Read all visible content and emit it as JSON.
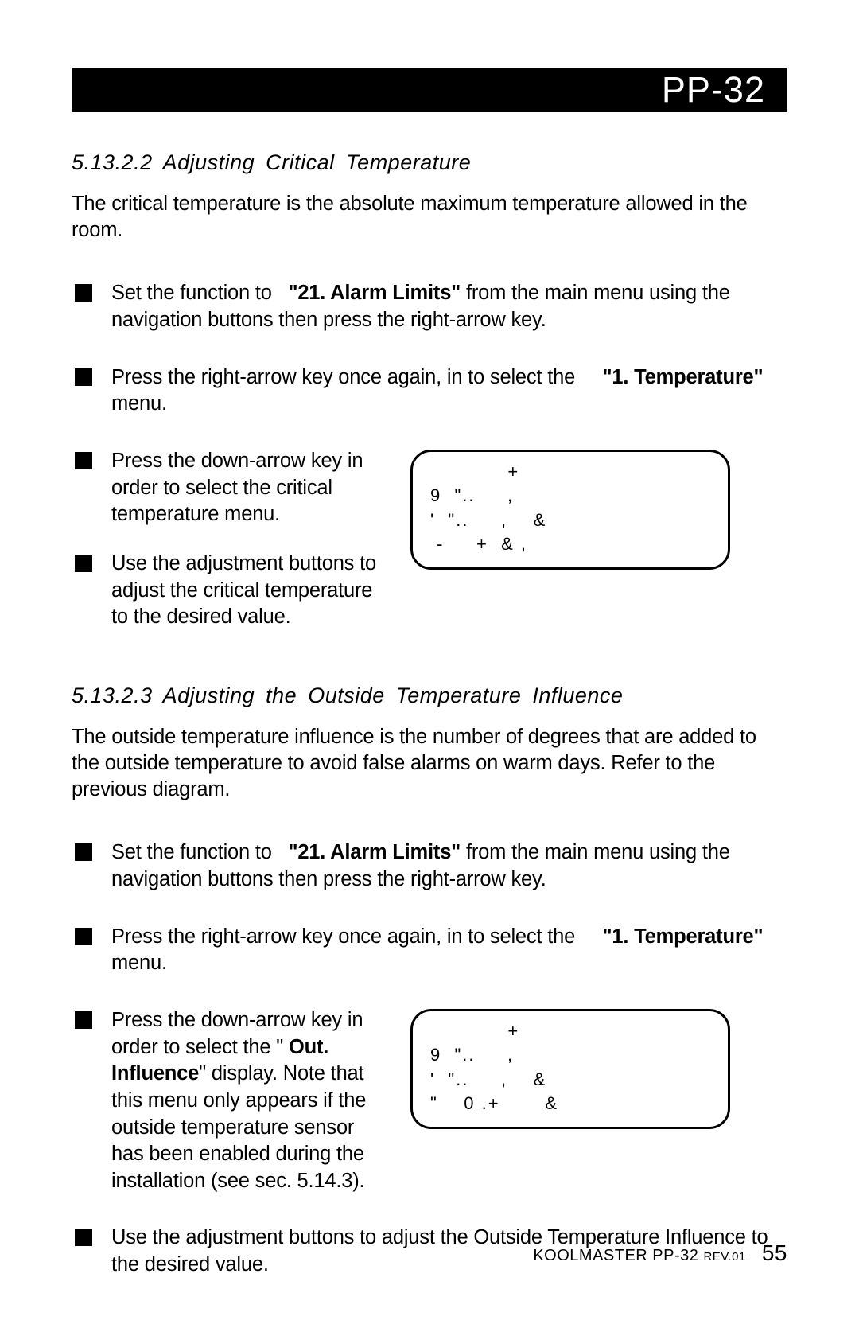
{
  "header": {
    "model": "PP-32"
  },
  "sec1": {
    "heading": "5.13.2.2  Adjusting  Critical  Temperature",
    "intro": "The critical temperature is the absolute maximum temperature allowed in the room.",
    "b1_pre": "Set the function to ",
    "b1_bold": "\"21. Alarm Limits\"",
    "b1_post": " from the  main menu using the navigation buttons then press the right-arrow key.",
    "b2_pre": "Press the right-arrow key once again, in to select the ",
    "b2_bold": "\"1. Tempera­ture\"",
    "b2_post": " menu.",
    "b3": "Press the down-arrow key in order to select the critical temperature menu.",
    "b4": "Use the adjustment buttons to adjust the critical temperature to the desired value.",
    "lcd": "            +\n9  \"..     ,\n'  \"..     ,    &\n -     +  & ,"
  },
  "sec2": {
    "heading": "5.13.2.3  Adjusting  the  Outside  Temperature  Influence",
    "intro": "The outside temperature influence is the number of degrees that are added to the outside temperature to avoid false alarms on warm days. Refer to the previous diagram.",
    "b1_pre": "Set the function to ",
    "b1_bold": "\"21. Alarm Limits\"",
    "b1_post": " from the  main menu using the navigation buttons then press the right-arrow key.",
    "b2_pre": "Press the right-arrow key once again, in to select the ",
    "b2_bold": "\"1. Tempera­ture\"",
    "b2_post": " menu.",
    "b3_pre": "Press the down-arrow key in order to select the \"",
    "b3_bold": " Out. Influence",
    "b3_post": "\" display. Note that this menu only appears if the outside temperature sensor has been enabled during the installation (see sec. 5.14.3).",
    "b4": "Use the adjustment buttons to adjust the Outside Temperature Influence to the desired value.",
    "lcd": "            +\n9  \"..     ,\n'  \"..     ,    &\n\"    0 .+       &"
  },
  "footer": {
    "product": "KOOLMASTER PP-32",
    "rev": "REV.01",
    "page": "55"
  }
}
